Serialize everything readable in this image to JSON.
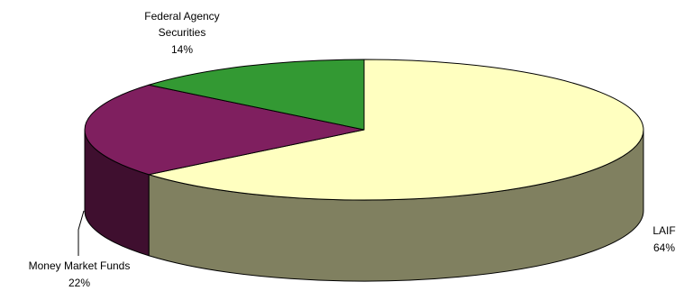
{
  "chart_data": {
    "type": "pie",
    "style": "3d",
    "slices": [
      {
        "label_lines": [
          "LAIF"
        ],
        "percent_label": "64%",
        "value": 64,
        "color": "#FFFFC0",
        "side_color": "#808060"
      },
      {
        "label_lines": [
          "Money Market Funds"
        ],
        "percent_label": "22%",
        "value": 22,
        "color": "#7F1F5F",
        "side_color": "#3F0F2F"
      },
      {
        "label_lines": [
          "Federal Agency",
          "Securities"
        ],
        "percent_label": "14%",
        "value": 14,
        "color": "#339933",
        "side_color": "#1A4D1A"
      }
    ],
    "legend": "none",
    "labels_on_slices": false
  }
}
